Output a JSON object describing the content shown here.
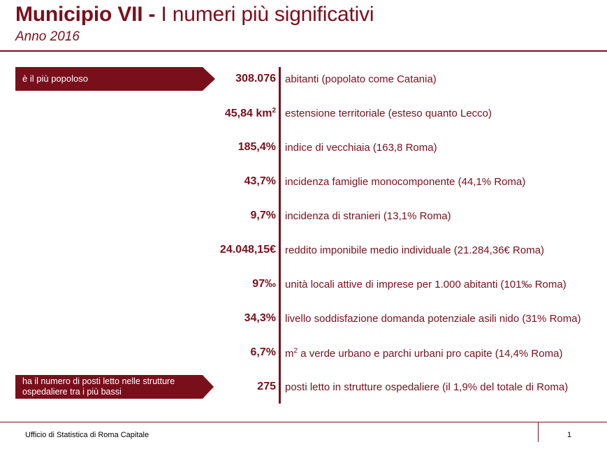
{
  "header": {
    "title_bold": "Municipio VII -",
    "title_rest": " I numeri più significativi",
    "subtitle": "Anno 2016"
  },
  "tags": {
    "top": "è il più popoloso",
    "bottom_line1": "ha il numero di posti letto nelle strutture",
    "bottom_line2": "ospedaliere tra i più bassi"
  },
  "rows": [
    {
      "value": "308.076",
      "description": "abitanti (popolato come Catania)"
    },
    {
      "value": "45,84 km",
      "value_sup": "2",
      "description": "estensione territoriale (esteso quanto Lecco)"
    },
    {
      "value": "185,4%",
      "description": "indice di vecchiaia (163,8 Roma)"
    },
    {
      "value": "43,7%",
      "description": "incidenza famiglie monocomponente (44,1% Roma)"
    },
    {
      "value": "9,7%",
      "description": "incidenza di stranieri (13,1% Roma)"
    },
    {
      "value": "24.048,15€",
      "description": "reddito imponibile medio individuale (21.284,36€ Roma)"
    },
    {
      "value": "97‰",
      "description": "unità locali attive di imprese per 1.000 abitanti (101‰ Roma)"
    },
    {
      "value": "34,3%",
      "description": "livello soddisfazione domanda potenziale asili nido (31% Roma)"
    },
    {
      "value": "6,7%",
      "description_pre": "m",
      "description_sup": "2",
      "description": " a verde urbano e parchi urbani pro capite (14,4% Roma)"
    },
    {
      "value": "275",
      "description": "posti letto in strutture ospedaliere  (il 1,9% del totale di Roma)"
    }
  ],
  "footer": {
    "org": "Ufficio di Statistica di Roma Capitale",
    "page": "1"
  },
  "colors": {
    "accent": "#7a0f1c"
  }
}
